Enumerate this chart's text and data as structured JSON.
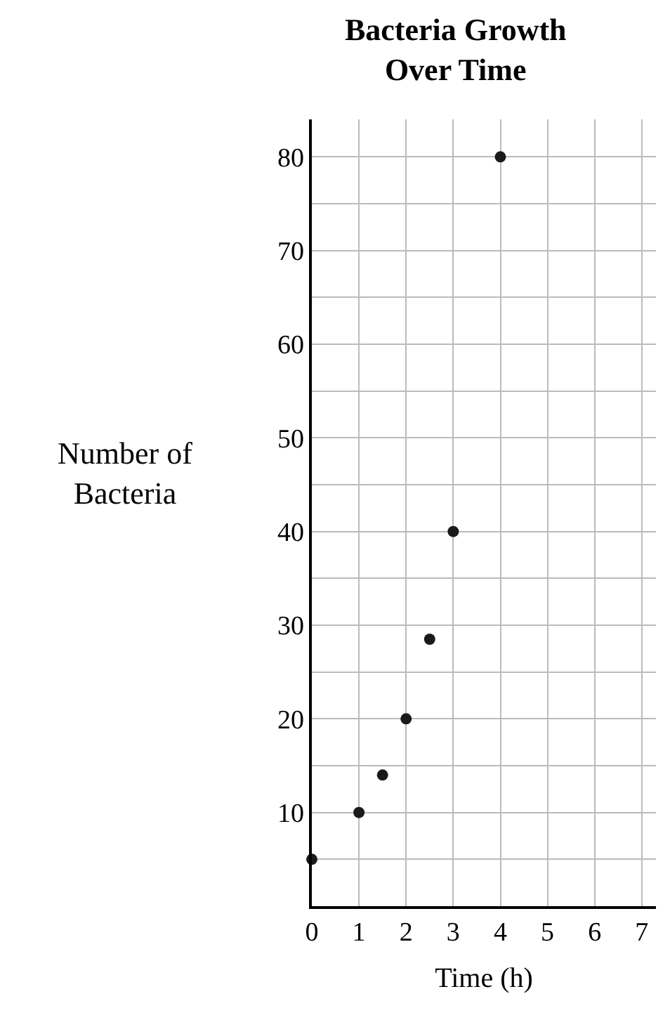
{
  "chart_data": {
    "type": "scatter",
    "title": "Bacteria Growth\nOver Time",
    "xlabel": "Time (h)",
    "ylabel": "Number of\nBacteria",
    "x": [
      0,
      1,
      1.5,
      2,
      2.5,
      3,
      4
    ],
    "values": [
      5,
      10,
      14,
      20,
      28.5,
      40,
      80
    ],
    "color": "#1a1a1a",
    "marker": "circle",
    "grid": true,
    "xlim": [
      0,
      7.3
    ],
    "xticks": [
      0,
      1,
      2,
      3,
      4,
      5,
      6,
      7
    ],
    "ylim": [
      0,
      84
    ],
    "yticks": [
      {
        "value": 5,
        "label": null
      },
      10,
      {
        "value": 15,
        "label": null
      },
      20,
      {
        "value": 25,
        "label": null
      },
      30,
      {
        "value": 35,
        "label": null
      },
      40,
      {
        "value": 45,
        "label": null
      },
      50,
      {
        "value": 55,
        "label": null
      },
      60,
      {
        "value": 65,
        "label": null
      },
      70,
      {
        "value": 75,
        "label": null
      },
      80
    ]
  }
}
